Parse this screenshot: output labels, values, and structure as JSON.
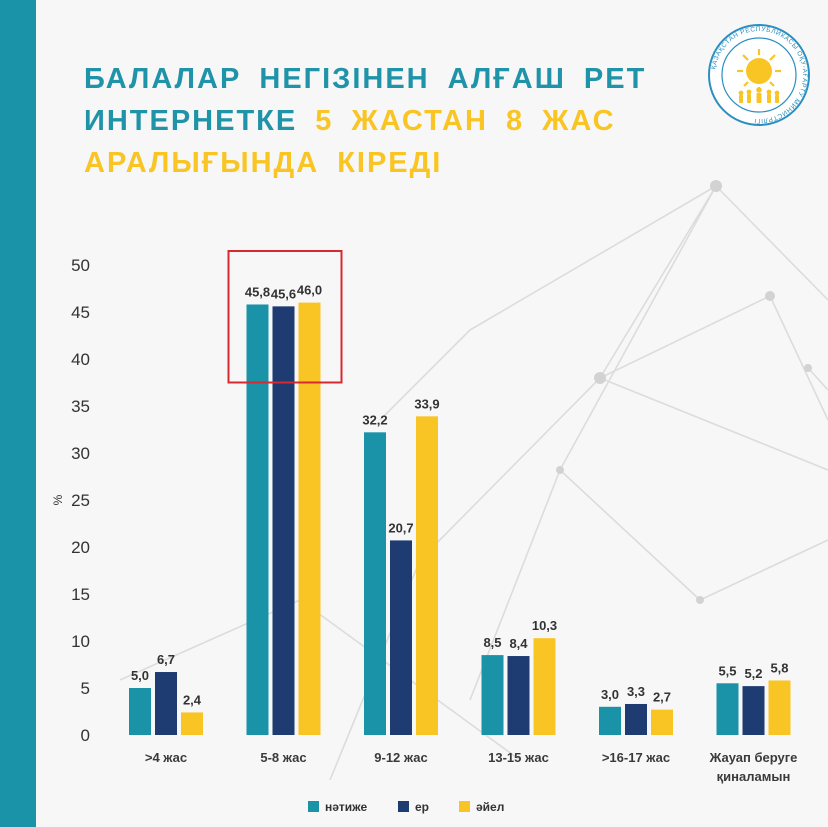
{
  "title": {
    "line1": "БАЛАЛАР НЕГІЗІНЕН АЛҒАШ РЕТ",
    "line2_a": "ИНТЕРНЕТКЕ",
    "line2_b": "5 ЖАСТАН 8 ЖАС",
    "line3": "АРАЛЫҒЫНДА КІРЕДІ"
  },
  "colors": {
    "stripe": "#1a93a8",
    "title_teal": "#1f93a8",
    "title_yellow": "#f9c524",
    "highlight_box": "#d42a30"
  },
  "chart_data": {
    "type": "bar",
    "title": "",
    "xlabel": "",
    "ylabel": "%",
    "ylim": [
      0,
      50
    ],
    "yticks": [
      0,
      5,
      10,
      15,
      20,
      25,
      30,
      35,
      40,
      45,
      50
    ],
    "grid": false,
    "legend_position": "bottom",
    "categories": [
      ">4 жас",
      "5-8 жас",
      "9-12 жас",
      "13-15 жас",
      ">16-17 жас",
      [
        "Жауап беруге",
        "қиналамын"
      ]
    ],
    "series": [
      {
        "name": "нәтиже",
        "color": "#1a93a8",
        "values": [
          5.0,
          45.8,
          32.2,
          8.5,
          3.0,
          5.5
        ],
        "labels": [
          "5,0",
          "45,8",
          "32,2",
          "8,5",
          "3,0",
          "5,5"
        ]
      },
      {
        "name": "ер",
        "color": "#1e3b72",
        "values": [
          6.7,
          45.6,
          20.7,
          8.4,
          3.3,
          5.2
        ],
        "labels": [
          "6,7",
          "45,6",
          "20,7",
          "8,4",
          "3,3",
          "5,2"
        ]
      },
      {
        "name": "әйел",
        "color": "#f9c524",
        "values": [
          2.4,
          46.0,
          33.9,
          10.3,
          2.7,
          5.8
        ],
        "labels": [
          "2,4",
          "46,0",
          "33,9",
          "10,3",
          "2,7",
          "5,8"
        ]
      }
    ],
    "highlight_category": "5-8 жас"
  }
}
